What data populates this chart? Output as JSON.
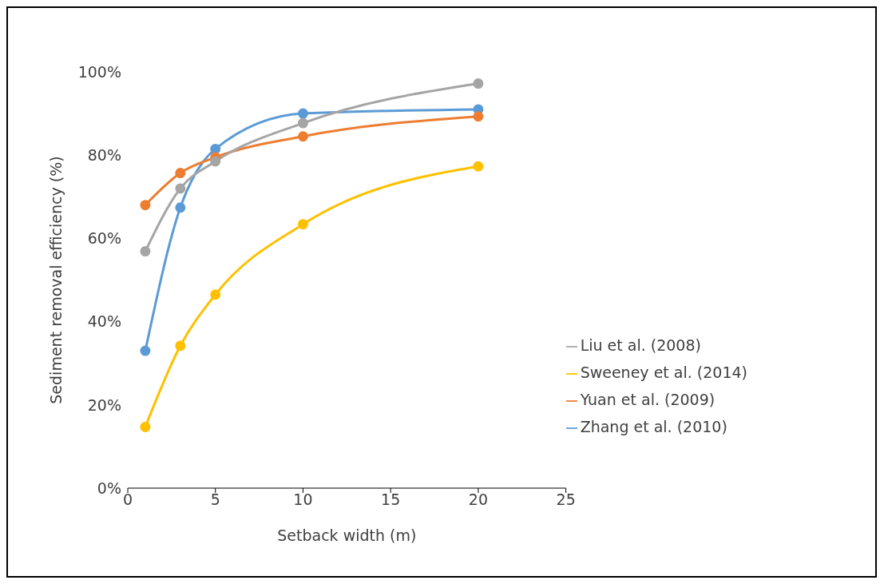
{
  "chart_data": {
    "type": "line",
    "xlabel": "Setback width (m)",
    "ylabel": "Sediment removal efficiency (%)",
    "xlim": [
      0,
      25
    ],
    "xticks": [
      0,
      5,
      10,
      15,
      20,
      25
    ],
    "ylim": [
      0,
      100
    ],
    "yticks": [
      {
        "value": 0,
        "label": "0%"
      },
      {
        "value": 20,
        "label": "20%"
      },
      {
        "value": 40,
        "label": "40%"
      },
      {
        "value": 60,
        "label": "60%"
      },
      {
        "value": 80,
        "label": "80%"
      },
      {
        "value": 100,
        "label": "100%"
      }
    ],
    "x": [
      1,
      3,
      5,
      10,
      20
    ],
    "series": [
      {
        "name": "Zhang et al. (2010)",
        "color": "#5b9bd5",
        "values": [
          33,
          67.4,
          81.5,
          90,
          91
        ]
      },
      {
        "name": "Yuan et al. (2009)",
        "color": "#ed7d31",
        "values": [
          68,
          75.7,
          79.5,
          84.5,
          89.3
        ]
      },
      {
        "name": "Liu et al. (2008)",
        "color": "#a5a5a5",
        "values": [
          56.9,
          72,
          78.5,
          87.7,
          97.2
        ]
      },
      {
        "name": "Sweeney et al. (2014)",
        "color": "#ffc000",
        "values": [
          14.7,
          34.2,
          46.5,
          63.4,
          77.3
        ]
      }
    ],
    "grid": false,
    "legend": "right",
    "marker": "circle",
    "line_style": "solid"
  }
}
